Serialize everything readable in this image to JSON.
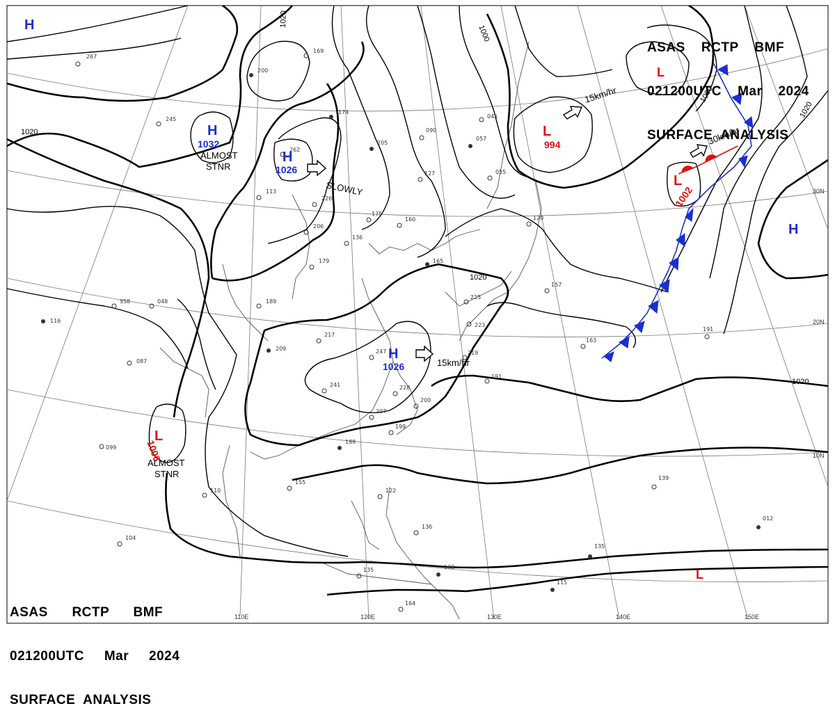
{
  "header_top": {
    "line1": "ASAS    RCTP    BMF",
    "line2": "021200UTC    Mar    2024",
    "line3": "SURFACE  ANALYSIS"
  },
  "header_bottom": {
    "line1": "ASAS      RCTP      BMF",
    "line2": "021200UTC     Mar     2024",
    "line3": "SURFACE  ANALYSIS"
  },
  "longitude_labels": [
    "110E",
    "120E",
    "130E",
    "140E",
    "150E"
  ],
  "latitude_labels": [
    "30N",
    "20N",
    "10N"
  ],
  "isobar_labels": [
    "1020",
    "1000",
    "1020",
    "1000",
    "1020",
    "1020",
    "1020"
  ],
  "pressure_centers": [
    {
      "type": "H",
      "value": ""
    },
    {
      "type": "H",
      "value": "1032"
    },
    {
      "type": "H",
      "value": "1026"
    },
    {
      "type": "H",
      "value": "1026"
    },
    {
      "type": "H",
      "value": ""
    },
    {
      "type": "L",
      "value": "994"
    },
    {
      "type": "L",
      "value": "1002"
    },
    {
      "type": "L",
      "value": "1006"
    },
    {
      "type": "L",
      "value": ""
    },
    {
      "type": "L",
      "value": ""
    }
  ],
  "movement_labels": {
    "almost_stnr_1": "ALMOST\nSTNR",
    "almost_stnr_2": "ALMOST\nSTNR",
    "slowly": "SLOWLY",
    "speed_1": "15km/hr",
    "speed_2": "15km/hr",
    "speed_3": "30km/hr"
  },
  "station_numbers": [
    "267",
    "200",
    "169",
    "245",
    "174",
    "205",
    "262",
    "113",
    "226",
    "206",
    "179",
    "175",
    "160",
    "136",
    "189",
    "217",
    "241",
    "209",
    "247",
    "228",
    "200",
    "207",
    "199",
    "189",
    "155",
    "110",
    "122",
    "136",
    "135",
    "133",
    "164",
    "104",
    "099",
    "087",
    "116",
    "958",
    "048",
    "090",
    "127",
    "057",
    "055",
    "045",
    "120",
    "157",
    "165",
    "225",
    "223",
    "219",
    "191",
    "191",
    "163",
    "139",
    "115",
    "012",
    "135"
  ],
  "colors": {
    "isobar": "#000000",
    "coast": "#444444",
    "high": "#1a2fd0",
    "low": "#e01010",
    "cold_front": "#1a2fd0",
    "warm_front": "#e01010"
  }
}
